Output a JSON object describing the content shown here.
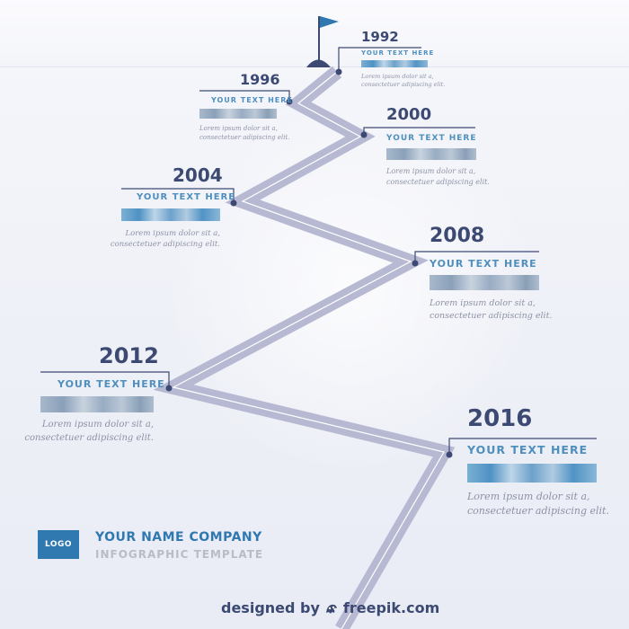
{
  "milestones": [
    {
      "year": "1992",
      "heading": "YOUR TEXT HERE",
      "line1": "Lorem ipsum dolor sit a,",
      "line2": "consectetuer adipiscing elit."
    },
    {
      "year": "1996",
      "heading": "YOUR TEXT HERE",
      "line1": "Lorem ipsum dolor sit a,",
      "line2": "consectetuer adipiscing elit."
    },
    {
      "year": "2000",
      "heading": "YOUR TEXT HERE",
      "line1": "Lorem ipsum dolor sit a,",
      "line2": "consectetuer adipiscing elit."
    },
    {
      "year": "2004",
      "heading": "YOUR TEXT HERE",
      "line1": "Lorem ipsum dolor sit a,",
      "line2": "consectetuer adipiscing elit."
    },
    {
      "year": "2008",
      "heading": "YOUR TEXT HERE",
      "line1": "Lorem ipsum dolor sit a,",
      "line2": "consectetuer adipiscing elit."
    },
    {
      "year": "2012",
      "heading": "YOUR TEXT HERE",
      "line1": "Lorem ipsum dolor sit a,",
      "line2": "consectetuer adipiscing elit."
    },
    {
      "year": "2016",
      "heading": "YOUR TEXT HERE",
      "line1": "Lorem ipsum dolor sit a,",
      "line2": "consectetuer adipiscing elit."
    }
  ],
  "branding": {
    "logo": "LOGO",
    "company": "YOUR NAME COMPANY",
    "subtitle": "INFOGRAPHIC TEMPLATE"
  },
  "credit": {
    "prefix": "designed by",
    "site": "freepik.com",
    "icon": "freepik-logo-icon"
  },
  "icons": [
    "flag-icon"
  ],
  "colors": {
    "road": "#b7b9d3",
    "road_line": "#ffffff",
    "year": "#3c4a73",
    "heading": "#4f8fbd",
    "text": "#8d93a7",
    "accent": "#2f78b0"
  }
}
